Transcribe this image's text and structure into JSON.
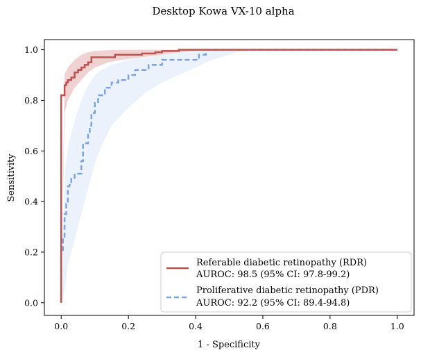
{
  "chart_data": {
    "type": "line",
    "title": "Desktop Kowa VX-10 alpha",
    "xlabel": "1 - Specificity",
    "ylabel": "Sensitivity",
    "xlim": [
      -0.05,
      1.05
    ],
    "ylim": [
      -0.05,
      1.04
    ],
    "x_ticks": [
      "0.0",
      "0.2",
      "0.4",
      "0.6",
      "0.8",
      "1.0"
    ],
    "y_ticks": [
      "0.0",
      "0.2",
      "0.4",
      "0.6",
      "0.8",
      "1.0"
    ],
    "grid": false,
    "legend_position": "bottom-right",
    "series": [
      {
        "name": "Referable diabetic retinopathy (RDR)",
        "subtitle": "AUROC: 98.5 (95% CI: 97.8-99.2)",
        "color": "#c0504d",
        "band_color": "#e8b4b4",
        "style": "solid",
        "points": [
          [
            0,
            0
          ],
          [
            0,
            0.82
          ],
          [
            0.01,
            0.82
          ],
          [
            0.01,
            0.86
          ],
          [
            0.015,
            0.86
          ],
          [
            0.015,
            0.87
          ],
          [
            0.02,
            0.87
          ],
          [
            0.02,
            0.88
          ],
          [
            0.03,
            0.88
          ],
          [
            0.03,
            0.89
          ],
          [
            0.04,
            0.89
          ],
          [
            0.04,
            0.91
          ],
          [
            0.05,
            0.91
          ],
          [
            0.05,
            0.92
          ],
          [
            0.06,
            0.92
          ],
          [
            0.06,
            0.93
          ],
          [
            0.07,
            0.93
          ],
          [
            0.07,
            0.94
          ],
          [
            0.08,
            0.94
          ],
          [
            0.08,
            0.95
          ],
          [
            0.09,
            0.95
          ],
          [
            0.09,
            0.97
          ],
          [
            0.16,
            0.97
          ],
          [
            0.16,
            0.98
          ],
          [
            0.24,
            0.98
          ],
          [
            0.24,
            0.985
          ],
          [
            0.28,
            0.985
          ],
          [
            0.28,
            0.99
          ],
          [
            0.3,
            0.99
          ],
          [
            0.3,
            0.995
          ],
          [
            0.35,
            0.995
          ],
          [
            0.35,
            1.0
          ],
          [
            1.0,
            1.0
          ]
        ],
        "band": {
          "x": [
            0,
            0.01,
            0.02,
            0.04,
            0.06,
            0.08,
            0.1,
            0.14,
            0.18,
            0.24,
            0.3,
            0.35,
            0.4,
            0.5,
            1.0
          ],
          "lower": [
            0,
            0.75,
            0.8,
            0.85,
            0.88,
            0.91,
            0.93,
            0.95,
            0.96,
            0.97,
            0.98,
            0.99,
            0.995,
            1.0,
            1.0
          ],
          "upper": [
            0,
            0.9,
            0.93,
            0.96,
            0.98,
            0.99,
            0.995,
            0.998,
            1.0,
            1.0,
            1.0,
            1.0,
            1.0,
            1.0,
            1.0
          ]
        }
      },
      {
        "name": "Proliferative diabetic retinopathy (PDR)",
        "subtitle": "AUROC: 92.2 (95% CI: 89.4-94.8)",
        "color": "#7da3e0",
        "band_color": "#dce7f8",
        "style": "dashed",
        "points": [
          [
            0,
            0
          ],
          [
            0,
            0.2
          ],
          [
            0.005,
            0.2
          ],
          [
            0.005,
            0.26
          ],
          [
            0.01,
            0.26
          ],
          [
            0.01,
            0.35
          ],
          [
            0.015,
            0.35
          ],
          [
            0.015,
            0.39
          ],
          [
            0.02,
            0.39
          ],
          [
            0.02,
            0.46
          ],
          [
            0.025,
            0.46
          ],
          [
            0.025,
            0.47
          ],
          [
            0.03,
            0.47
          ],
          [
            0.03,
            0.49
          ],
          [
            0.04,
            0.49
          ],
          [
            0.04,
            0.51
          ],
          [
            0.06,
            0.51
          ],
          [
            0.06,
            0.56
          ],
          [
            0.065,
            0.56
          ],
          [
            0.065,
            0.63
          ],
          [
            0.08,
            0.63
          ],
          [
            0.08,
            0.67
          ],
          [
            0.085,
            0.67
          ],
          [
            0.085,
            0.7
          ],
          [
            0.09,
            0.7
          ],
          [
            0.09,
            0.75
          ],
          [
            0.1,
            0.75
          ],
          [
            0.1,
            0.79
          ],
          [
            0.11,
            0.79
          ],
          [
            0.11,
            0.82
          ],
          [
            0.13,
            0.82
          ],
          [
            0.13,
            0.85
          ],
          [
            0.15,
            0.85
          ],
          [
            0.15,
            0.87
          ],
          [
            0.17,
            0.87
          ],
          [
            0.17,
            0.88
          ],
          [
            0.2,
            0.88
          ],
          [
            0.2,
            0.9
          ],
          [
            0.22,
            0.9
          ],
          [
            0.22,
            0.92
          ],
          [
            0.26,
            0.92
          ],
          [
            0.26,
            0.94
          ],
          [
            0.3,
            0.94
          ],
          [
            0.3,
            0.96
          ],
          [
            0.41,
            0.96
          ],
          [
            0.41,
            0.98
          ],
          [
            0.43,
            0.98
          ],
          [
            0.43,
            1.0
          ],
          [
            1.0,
            1.0
          ]
        ],
        "band": {
          "x": [
            0,
            0.01,
            0.02,
            0.04,
            0.06,
            0.08,
            0.1,
            0.12,
            0.15,
            0.2,
            0.25,
            0.3,
            0.35,
            0.4,
            0.45,
            0.5,
            0.55,
            1.0
          ],
          "lower": [
            0,
            0.05,
            0.15,
            0.25,
            0.35,
            0.45,
            0.55,
            0.62,
            0.7,
            0.77,
            0.83,
            0.87,
            0.9,
            0.93,
            0.96,
            0.98,
            1.0,
            1.0
          ],
          "upper": [
            0,
            0.5,
            0.62,
            0.72,
            0.8,
            0.86,
            0.9,
            0.92,
            0.94,
            0.96,
            0.97,
            0.98,
            0.99,
            1.0,
            1.0,
            1.0,
            1.0,
            1.0
          ]
        }
      }
    ]
  }
}
